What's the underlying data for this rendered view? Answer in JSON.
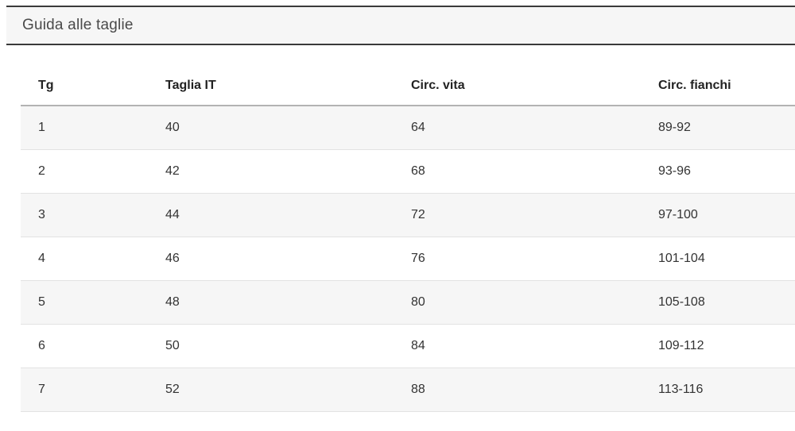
{
  "accordion": {
    "title": "Guida alle taglie"
  },
  "table": {
    "columns": [
      "Tg",
      "Taglia IT",
      "Circ. vita",
      "Circ. fianchi"
    ],
    "rows": [
      [
        "1",
        "40",
        "64",
        "89-92"
      ],
      [
        "2",
        "42",
        "68",
        "93-96"
      ],
      [
        "3",
        "44",
        "72",
        "97-100"
      ],
      [
        "4",
        "46",
        "76",
        "101-104"
      ],
      [
        "5",
        "48",
        "80",
        "105-108"
      ],
      [
        "6",
        "50",
        "84",
        "109-112"
      ],
      [
        "7",
        "52",
        "88",
        "113-116"
      ]
    ]
  }
}
